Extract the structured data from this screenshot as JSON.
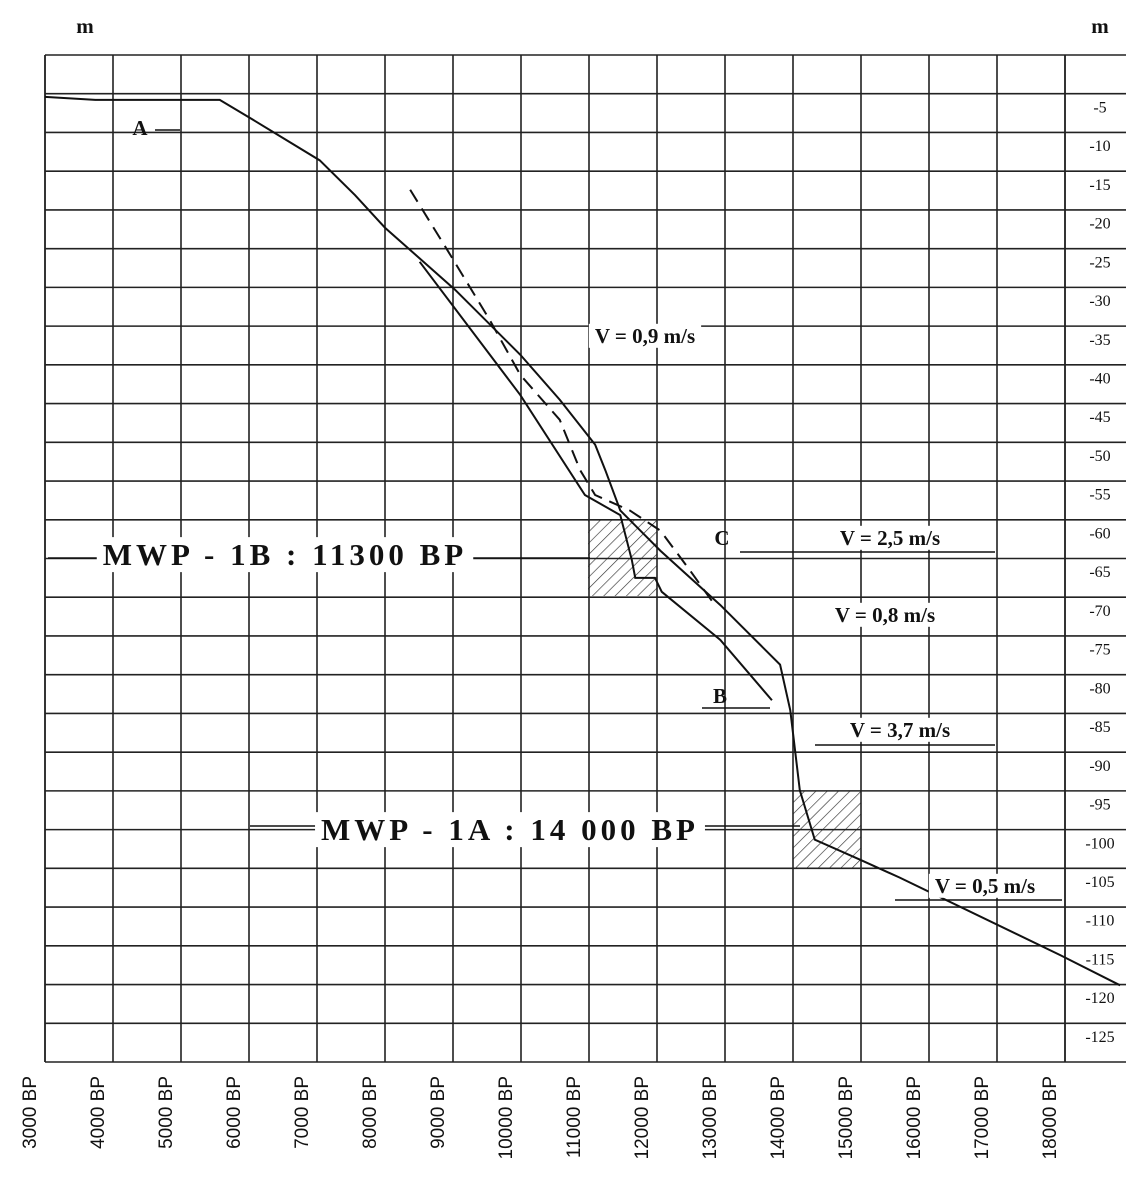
{
  "chart_data": {
    "type": "line",
    "y_label": "m",
    "y2_label": "m",
    "xlim": [
      3000,
      18000
    ],
    "ylim": [
      -130,
      0
    ],
    "xticks": [
      {
        "value": 3000,
        "label": "3000 BP"
      },
      {
        "value": 4000,
        "label": "4000 BP"
      },
      {
        "value": 5000,
        "label": "5000 BP"
      },
      {
        "value": 6000,
        "label": "6000 BP"
      },
      {
        "value": 7000,
        "label": "7000 BP"
      },
      {
        "value": 8000,
        "label": "8000 BP"
      },
      {
        "value": 9000,
        "label": "9000 BP"
      },
      {
        "value": 10000,
        "label": "10000 BP"
      },
      {
        "value": 11000,
        "label": "11000 BP"
      },
      {
        "value": 12000,
        "label": "12000 BP"
      },
      {
        "value": 13000,
        "label": "13000 BP"
      },
      {
        "value": 14000,
        "label": "14000 BP"
      },
      {
        "value": 15000,
        "label": "15000 BP"
      },
      {
        "value": 16000,
        "label": "16000 BP"
      },
      {
        "value": 17000,
        "label": "17000 BP"
      },
      {
        "value": 18000,
        "label": "18000 BP"
      }
    ],
    "yticks": [
      -5,
      -10,
      -15,
      -20,
      -25,
      -30,
      -35,
      -40,
      -45,
      -50,
      -55,
      -60,
      -65,
      -70,
      -75,
      -80,
      -85,
      -90,
      -95,
      -100,
      -105,
      -110,
      -115,
      -120,
      -125
    ],
    "grid": true,
    "series": [
      {
        "name": "A",
        "color": "#111111",
        "dash": false,
        "x": [
          3000,
          3740,
          5570,
          6010,
          7040,
          7560,
          8000,
          9030,
          9990,
          10570,
          11090,
          11240,
          11460,
          12050,
          12930,
          13810,
          13960,
          14100,
          14320,
          14990,
          15570,
          17930,
          18810
        ],
        "values": [
          -5.4,
          -5.8,
          -5.8,
          -8.1,
          -13.6,
          -18.1,
          -22.3,
          -30.3,
          -38.7,
          -44.5,
          -50.3,
          -53.6,
          -58.8,
          -64.0,
          -71.0,
          -78.7,
          -84.6,
          -94.9,
          -101.3,
          -103.9,
          -106.2,
          -116.2,
          -120.1
        ]
      },
      {
        "name": "B",
        "color": "#111111",
        "dash": false,
        "x": [
          8510,
          9990,
          10940,
          11460,
          11630,
          11680,
          11970,
          12070,
          12930,
          13690
        ],
        "values": [
          -26.7,
          -43.9,
          -56.8,
          -59.4,
          -65.2,
          -67.5,
          -67.5,
          -69.3,
          -75.5,
          -83.3
        ]
      },
      {
        "name": "C",
        "color": "#111111",
        "dash": true,
        "x": [
          8370,
          8960,
          9540,
          9990,
          10570,
          10870,
          11090,
          11600,
          12050,
          12490,
          12850
        ],
        "values": [
          -17.4,
          -25.8,
          -34.2,
          -41.3,
          -47.1,
          -53.6,
          -56.8,
          -58.8,
          -61.4,
          -66.6,
          -71.0
        ]
      }
    ],
    "annotations": [
      "V = 0,9 m/s",
      "V = 2,5 m/s",
      "V = 0,8 m/s",
      "V = 3,7 m/s",
      "V = 0,5 m/s",
      "MWP - 1B : 11300 BP",
      "MWP - 1A : 14 000 BP"
    ]
  }
}
